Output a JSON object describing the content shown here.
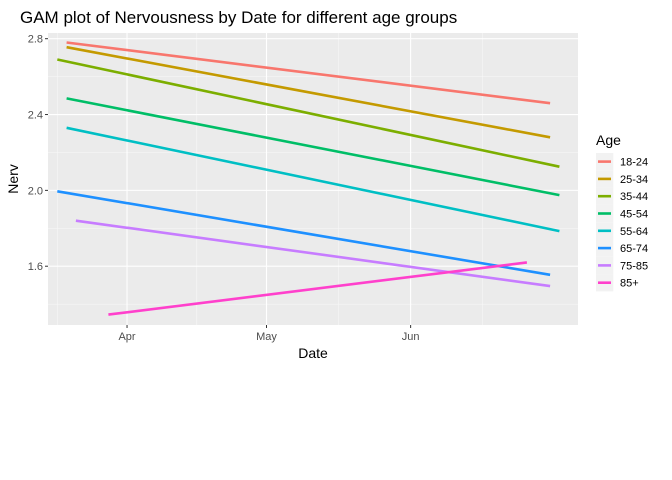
{
  "chart_data": {
    "type": "line",
    "title": "GAM plot of Nervousness by Date for different age groups",
    "xlabel": "Date",
    "ylabel": "Nerv",
    "x_ticks": [
      {
        "label": "Apr",
        "date": "2020-04-01"
      },
      {
        "label": "May",
        "date": "2020-05-01"
      },
      {
        "label": "Jun",
        "date": "2020-06-01"
      }
    ],
    "y_ticks": [
      1.6,
      2.0,
      2.4,
      2.8
    ],
    "xlim": [
      "2020-03-15",
      "2020-07-07"
    ],
    "ylim": [
      1.29,
      2.83
    ],
    "grid": true,
    "legend": {
      "title": "Age",
      "position": "right"
    },
    "series": [
      {
        "name": "18-24",
        "color": "#F8766D",
        "x": [
          "2020-03-19",
          "2020-07-01"
        ],
        "y": [
          2.78,
          2.46
        ]
      },
      {
        "name": "25-34",
        "color": "#C49A00",
        "x": [
          "2020-03-19",
          "2020-07-01"
        ],
        "y": [
          2.755,
          2.28
        ]
      },
      {
        "name": "35-44",
        "color": "#7CAE00",
        "x": [
          "2020-03-17",
          "2020-07-03"
        ],
        "y": [
          2.69,
          2.125
        ]
      },
      {
        "name": "45-54",
        "color": "#00BE67",
        "x": [
          "2020-03-19",
          "2020-07-03"
        ],
        "y": [
          2.485,
          1.975
        ]
      },
      {
        "name": "55-64",
        "color": "#00BFC4",
        "x": [
          "2020-03-19",
          "2020-07-03"
        ],
        "y": [
          2.33,
          1.785
        ]
      },
      {
        "name": "65-74",
        "color": "#1E90FF",
        "x": [
          "2020-03-17",
          "2020-07-01"
        ],
        "y": [
          1.995,
          1.555
        ]
      },
      {
        "name": "75-85",
        "color": "#C77CFF",
        "x": [
          "2020-03-21",
          "2020-07-01"
        ],
        "y": [
          1.84,
          1.495
        ]
      },
      {
        "name": "85+",
        "color": "#FF40CC",
        "x": [
          "2020-03-28",
          "2020-06-26"
        ],
        "y": [
          1.345,
          1.62
        ]
      }
    ]
  }
}
